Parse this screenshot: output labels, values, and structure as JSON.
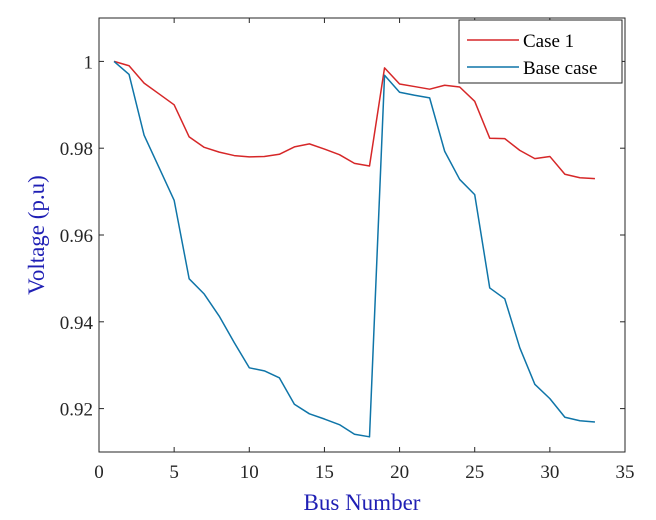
{
  "chart_data": {
    "type": "line",
    "title": "",
    "xlabel": "Bus Number",
    "ylabel": "Voltage (p.u)",
    "xlim": [
      0,
      35
    ],
    "ylim": [
      0.91,
      1.01
    ],
    "xticks": [
      0,
      5,
      10,
      15,
      20,
      25,
      30,
      35
    ],
    "yticks": [
      0.92,
      0.94,
      0.96,
      0.98,
      1
    ],
    "xtick_labels": [
      "0",
      "5",
      "10",
      "15",
      "20",
      "25",
      "30",
      "35"
    ],
    "ytick_labels": [
      "0.92",
      "0.94",
      "0.96",
      "0.98",
      "1"
    ],
    "grid": false,
    "legend_position": "top-right",
    "x": [
      1,
      2,
      3,
      4,
      5,
      6,
      7,
      8,
      9,
      10,
      11,
      12,
      13,
      14,
      15,
      16,
      17,
      18,
      19,
      20,
      21,
      22,
      23,
      24,
      25,
      26,
      27,
      28,
      29,
      30,
      31,
      32,
      33
    ],
    "series": [
      {
        "name": "Case 1",
        "color": "#d62728",
        "values": [
          1.0,
          0.999,
          0.995,
          0.9925,
          0.99,
          0.9826,
          0.9802,
          0.9791,
          0.9783,
          0.978,
          0.9781,
          0.9786,
          0.9803,
          0.981,
          0.9798,
          0.9785,
          0.9765,
          0.9759,
          0.9985,
          0.9948,
          0.9942,
          0.9936,
          0.9945,
          0.9941,
          0.9908,
          0.9823,
          0.9822,
          0.9795,
          0.9776,
          0.9781,
          0.974,
          0.9732,
          0.973
        ]
      },
      {
        "name": "Base case",
        "color": "#0f75a8",
        "values": [
          1.0,
          0.997,
          0.983,
          0.9755,
          0.968,
          0.9499,
          0.9464,
          0.9413,
          0.9352,
          0.9294,
          0.9287,
          0.9271,
          0.921,
          0.9188,
          0.9176,
          0.9163,
          0.9141,
          0.9135,
          0.9968,
          0.9929,
          0.9922,
          0.9916,
          0.9793,
          0.9728,
          0.9693,
          0.9478,
          0.9453,
          0.934,
          0.9256,
          0.9223,
          0.918,
          0.9172,
          0.9169
        ]
      }
    ]
  }
}
